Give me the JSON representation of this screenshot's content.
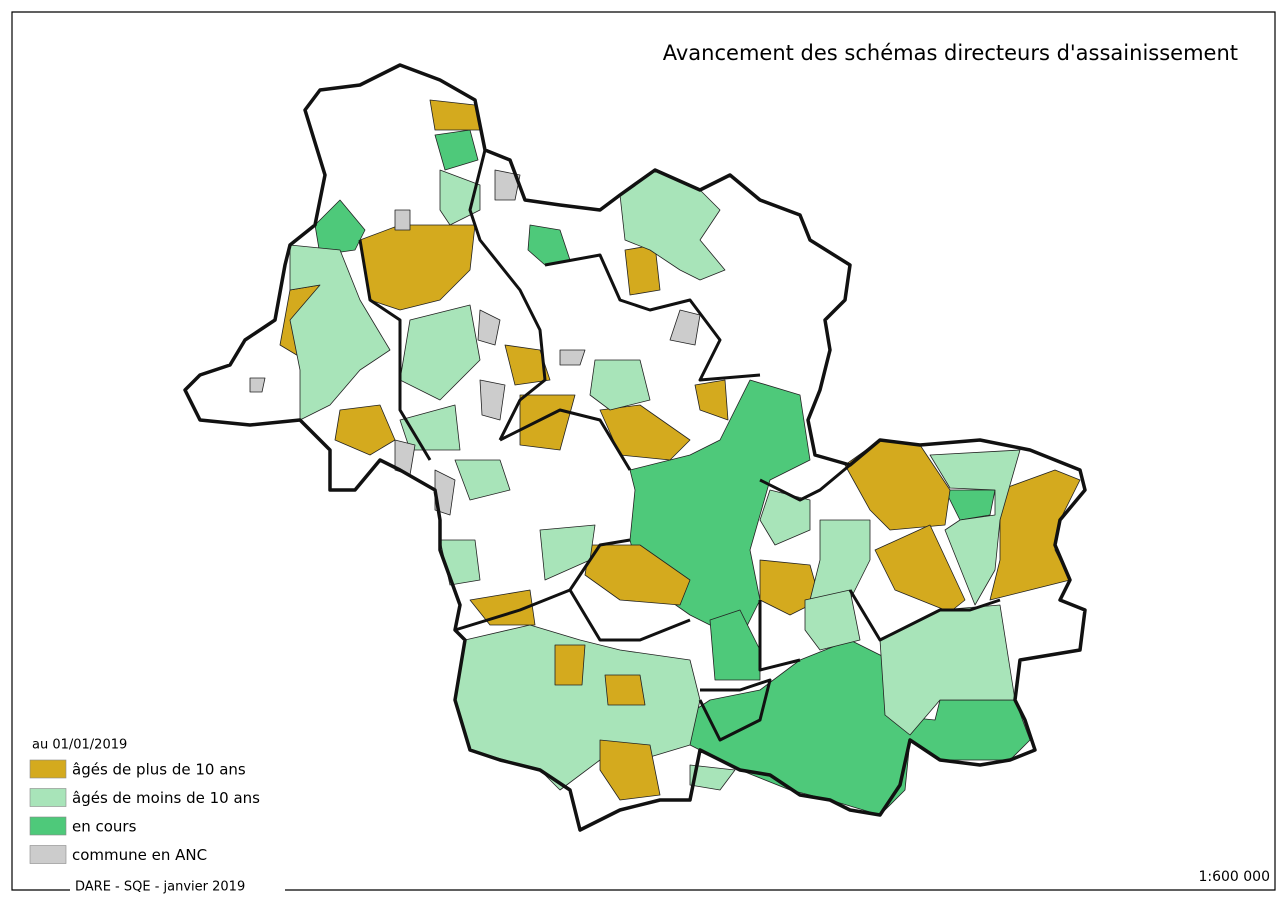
{
  "title": "Avancement des schémas directeurs d'assainissement",
  "legend": {
    "title": "au 01/01/2019",
    "items": [
      {
        "label": "âgés de plus de 10 ans",
        "color": "#d4aa1e"
      },
      {
        "label": "âgés de moins de 10 ans",
        "color": "#a8e4b9"
      },
      {
        "label": "en cours",
        "color": "#4ec97a"
      },
      {
        "label": "commune en ANC",
        "color": "#cccccc"
      }
    ]
  },
  "footer": "DARE - SQE - janvier 2019",
  "scale": "1:600 000"
}
